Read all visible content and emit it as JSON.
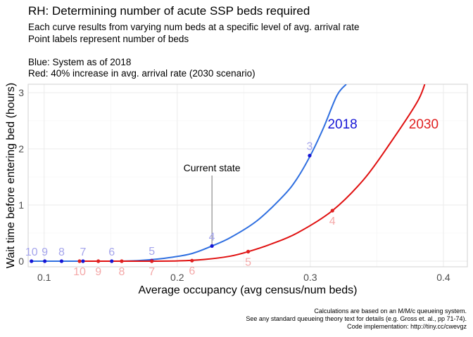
{
  "header": {
    "title": "RH: Determining number of acute SSP beds required",
    "subtitle": "Each curve results from varying num beds at a specific level of avg. arrival rate\nPoint labels represent number of beds\n\nBlue: System as of 2018\nRed: 40% increase in avg. arrival rate (2030 scenario)"
  },
  "caption": "Calculations are based on an M/M/c queueing system.\nSee any standard queueing theory text for details (e.g. Gross et. al., pp 71-74).\nCode implementation: http://tiny.cc/cwevgz",
  "chart_data": {
    "type": "line",
    "title": "RH: Determining number of acute SSP beds required",
    "xlabel": "Average occupancy (avg census/num beds)",
    "ylabel": "Wait time before entering bed (hours)",
    "xlim": [
      0.088,
      0.418
    ],
    "ylim": [
      -0.1,
      3.15
    ],
    "xticks": [
      0.1,
      0.2,
      0.3,
      0.4
    ],
    "xtick_labels": [
      "0.1",
      "0.2",
      "0.3",
      "0.4"
    ],
    "yticks": [
      0,
      1,
      2,
      3
    ],
    "ytick_labels": [
      "0",
      "1",
      "2",
      "3"
    ],
    "grid": true,
    "colors": {
      "blue_line": "#2f6fe0",
      "blue_point": "#1515d6",
      "blue_label": "#a5a5ec",
      "red_line": "#e01010",
      "red_point": "#e02020",
      "red_label": "#f4a8a8",
      "annotation_line": "#777777"
    },
    "series": [
      {
        "name": "2018",
        "color": "#1515d6",
        "label_x": 0.313,
        "label_y": 2.45,
        "points": [
          {
            "beds": 10,
            "x": 0.0905,
            "y": 0.0
          },
          {
            "beds": 9,
            "x": 0.1005,
            "y": 0.0
          },
          {
            "beds": 8,
            "x": 0.1131,
            "y": 0.0
          },
          {
            "beds": 7,
            "x": 0.1292,
            "y": 0.0
          },
          {
            "beds": 6,
            "x": 0.1508,
            "y": 0.0
          },
          {
            "beds": 5,
            "x": 0.1809,
            "y": 0.01
          },
          {
            "beds": 4,
            "x": 0.2261,
            "y": 0.27
          },
          {
            "beds": 3,
            "x": 0.2995,
            "y": 1.88
          }
        ],
        "curve": [
          [
            0.0905,
            0.0
          ],
          [
            0.12,
            0.0
          ],
          [
            0.15,
            0.0
          ],
          [
            0.17,
            0.01
          ],
          [
            0.19,
            0.05
          ],
          [
            0.21,
            0.13
          ],
          [
            0.226,
            0.27
          ],
          [
            0.24,
            0.42
          ],
          [
            0.26,
            0.72
          ],
          [
            0.28,
            1.17
          ],
          [
            0.29,
            1.47
          ],
          [
            0.3,
            1.88
          ],
          [
            0.31,
            2.38
          ],
          [
            0.32,
            2.95
          ],
          [
            0.327,
            3.15
          ]
        ]
      },
      {
        "name": "2030",
        "color": "#e02020",
        "label_x": 0.374,
        "label_y": 2.45,
        "points": [
          {
            "beds": 10,
            "x": 0.1266,
            "y": 0.0
          },
          {
            "beds": 9,
            "x": 0.1407,
            "y": 0.0
          },
          {
            "beds": 8,
            "x": 0.1583,
            "y": 0.0
          },
          {
            "beds": 7,
            "x": 0.1809,
            "y": 0.0
          },
          {
            "beds": 6,
            "x": 0.2111,
            "y": 0.01
          },
          {
            "beds": 5,
            "x": 0.2533,
            "y": 0.17
          },
          {
            "beds": 4,
            "x": 0.3166,
            "y": 0.9
          }
        ],
        "curve": [
          [
            0.1266,
            0.0
          ],
          [
            0.17,
            0.0
          ],
          [
            0.2,
            0.005
          ],
          [
            0.22,
            0.03
          ],
          [
            0.24,
            0.09
          ],
          [
            0.2533,
            0.17
          ],
          [
            0.27,
            0.3
          ],
          [
            0.29,
            0.5
          ],
          [
            0.3166,
            0.9
          ],
          [
            0.34,
            1.45
          ],
          [
            0.36,
            2.1
          ],
          [
            0.38,
            2.82
          ],
          [
            0.386,
            3.15
          ]
        ]
      }
    ],
    "annotation": {
      "text": "Current state",
      "x": 0.2261,
      "y_text": 1.5,
      "y_point": 0.27
    }
  }
}
